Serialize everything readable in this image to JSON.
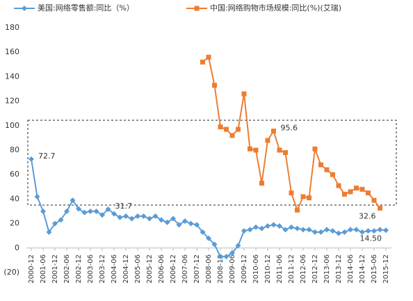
{
  "chart_data": {
    "type": "line",
    "categories": [
      "2000-12",
      null,
      "2001-06",
      null,
      "2001-12",
      null,
      "2002-06",
      null,
      "2002-12",
      null,
      "2003-06",
      null,
      "2003-12",
      null,
      "2004-06",
      null,
      "2004-12",
      null,
      "2005-06",
      null,
      "2005-12",
      null,
      "2006-06",
      null,
      "2006-12",
      null,
      "2007-06",
      null,
      "2007-12",
      null,
      "2008-06",
      null,
      "2008-12",
      null,
      "2009-06",
      null,
      "2009-12",
      null,
      "2010-06",
      null,
      "2010-12",
      null,
      "2011-06",
      null,
      "2011-12",
      null,
      "2012-06",
      null,
      "2012-12",
      null,
      "2013-06",
      null,
      "2013-12",
      null,
      "2014-06",
      null,
      "2014-12",
      null,
      "2015-06",
      null,
      "2015-12"
    ],
    "series": [
      {
        "name": "美国:网络零售额:同比（%）",
        "color": "#5b9bd5",
        "marker": "diamond",
        "values": [
          72.7,
          42,
          30,
          13,
          20,
          23,
          30,
          39,
          32,
          29,
          30,
          30,
          27,
          31.7,
          28,
          25,
          26,
          24,
          26,
          26,
          24,
          26,
          23,
          21,
          24,
          19,
          22,
          20,
          19,
          13,
          8,
          3,
          -7,
          -7,
          -4,
          2,
          14,
          15,
          17,
          16,
          18,
          19,
          18,
          15,
          17,
          16,
          15,
          15,
          13,
          13,
          15,
          14,
          12,
          13,
          15,
          15,
          13,
          14,
          14,
          15,
          14.5
        ],
        "value_labels": [
          "72.7",
          null,
          null,
          null,
          null,
          null,
          null,
          null,
          null,
          null,
          null,
          null,
          null,
          "31.7",
          null,
          null,
          null,
          null,
          null,
          null,
          null,
          null,
          null,
          null,
          null,
          null,
          null,
          null,
          null,
          null,
          null,
          null,
          null,
          null,
          null,
          null,
          null,
          null,
          null,
          null,
          null,
          null,
          null,
          null,
          null,
          null,
          null,
          null,
          null,
          null,
          null,
          null,
          null,
          null,
          null,
          null,
          null,
          null,
          null,
          null,
          "14.50"
        ]
      },
      {
        "name": "中国:网络购物市场规模:同比(%)(艾瑞)",
        "color": "#ed7d31",
        "marker": "square",
        "values": [
          null,
          null,
          null,
          null,
          null,
          null,
          null,
          null,
          null,
          null,
          null,
          null,
          null,
          null,
          null,
          null,
          null,
          null,
          null,
          null,
          null,
          null,
          null,
          null,
          null,
          null,
          null,
          null,
          null,
          152,
          156,
          133,
          99,
          97,
          92,
          97,
          126,
          81,
          80,
          53,
          88,
          95.6,
          80,
          78,
          45,
          31,
          42,
          41,
          81,
          68,
          64,
          60,
          51,
          44,
          46,
          49,
          48,
          45,
          39,
          32.6,
          null
        ],
        "value_labels": [
          null,
          null,
          null,
          null,
          null,
          null,
          null,
          null,
          null,
          null,
          null,
          null,
          null,
          null,
          null,
          null,
          null,
          null,
          null,
          null,
          null,
          null,
          null,
          null,
          null,
          null,
          null,
          null,
          null,
          null,
          null,
          null,
          null,
          null,
          null,
          null,
          null,
          null,
          null,
          null,
          null,
          "95.6",
          null,
          null,
          null,
          null,
          null,
          null,
          null,
          null,
          null,
          null,
          null,
          null,
          null,
          null,
          null,
          null,
          null,
          "32.6",
          null
        ]
      }
    ],
    "ylim": [
      -20,
      180
    ],
    "yticks": [
      {
        "value": -20,
        "label": "(20)"
      },
      0,
      20,
      40,
      60,
      80,
      100,
      120,
      140,
      160,
      180
    ],
    "grid": false
  }
}
